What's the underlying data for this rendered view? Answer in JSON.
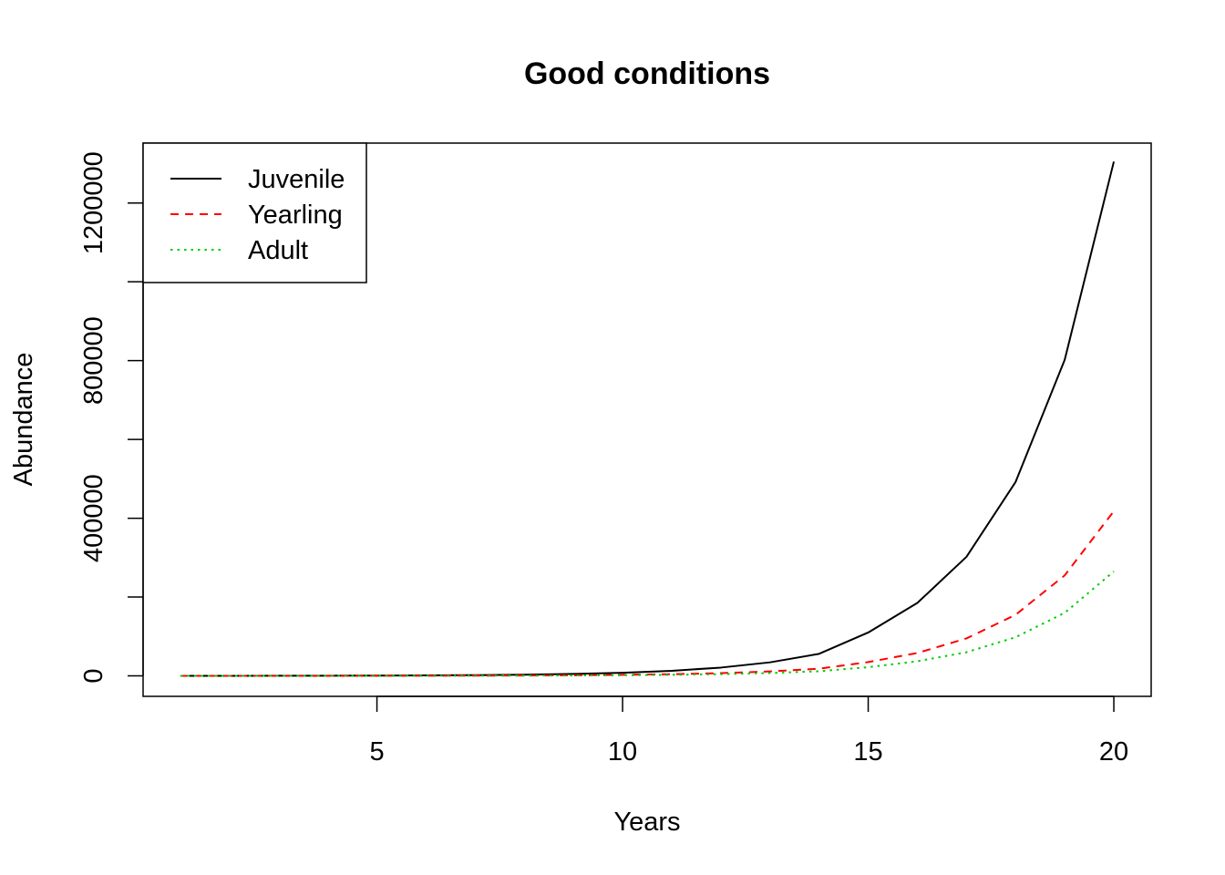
{
  "chart_data": {
    "type": "line",
    "title": "Good conditions",
    "xlabel": "Years",
    "ylabel": "Abundance",
    "xlim": [
      0.24,
      20.76
    ],
    "ylim": [
      -52000,
      1352000
    ],
    "x_ticks": [
      5,
      10,
      15,
      20
    ],
    "y_ticks": [
      0,
      400000,
      800000,
      1200000
    ],
    "y_tick_labels": [
      "0",
      "400000",
      "800000",
      "1200000"
    ],
    "grid": false,
    "legend_position": "top-left",
    "x": [
      1,
      2,
      3,
      4,
      5,
      6,
      7,
      8,
      9,
      10,
      11,
      12,
      13,
      14,
      15,
      16,
      17,
      18,
      19,
      20
    ],
    "series": [
      {
        "name": "Juvenile",
        "color": "#000000",
        "dash": "solid",
        "values": [
          100,
          160,
          260,
          420,
          690,
          1120,
          1830,
          2980,
          4860,
          7920,
          12900,
          21000,
          34300,
          55900,
          110000,
          185000,
          302000,
          492000,
          802000,
          1305000
        ]
      },
      {
        "name": "Yearling",
        "color": "#ff0000",
        "dash": "dashed",
        "values": [
          30,
          50,
          85,
          140,
          225,
          365,
          595,
          970,
          1580,
          2580,
          4200,
          6850,
          11200,
          18200,
          35000,
          58000,
          95000,
          155000,
          255000,
          418000
        ]
      },
      {
        "name": "Adult",
        "color": "#00cd00",
        "dash": "dotted",
        "values": [
          20,
          33,
          54,
          88,
          143,
          233,
          380,
          620,
          1010,
          1650,
          2690,
          4390,
          7150,
          11700,
          22000,
          37000,
          60000,
          98000,
          160000,
          265000
        ]
      }
    ]
  }
}
